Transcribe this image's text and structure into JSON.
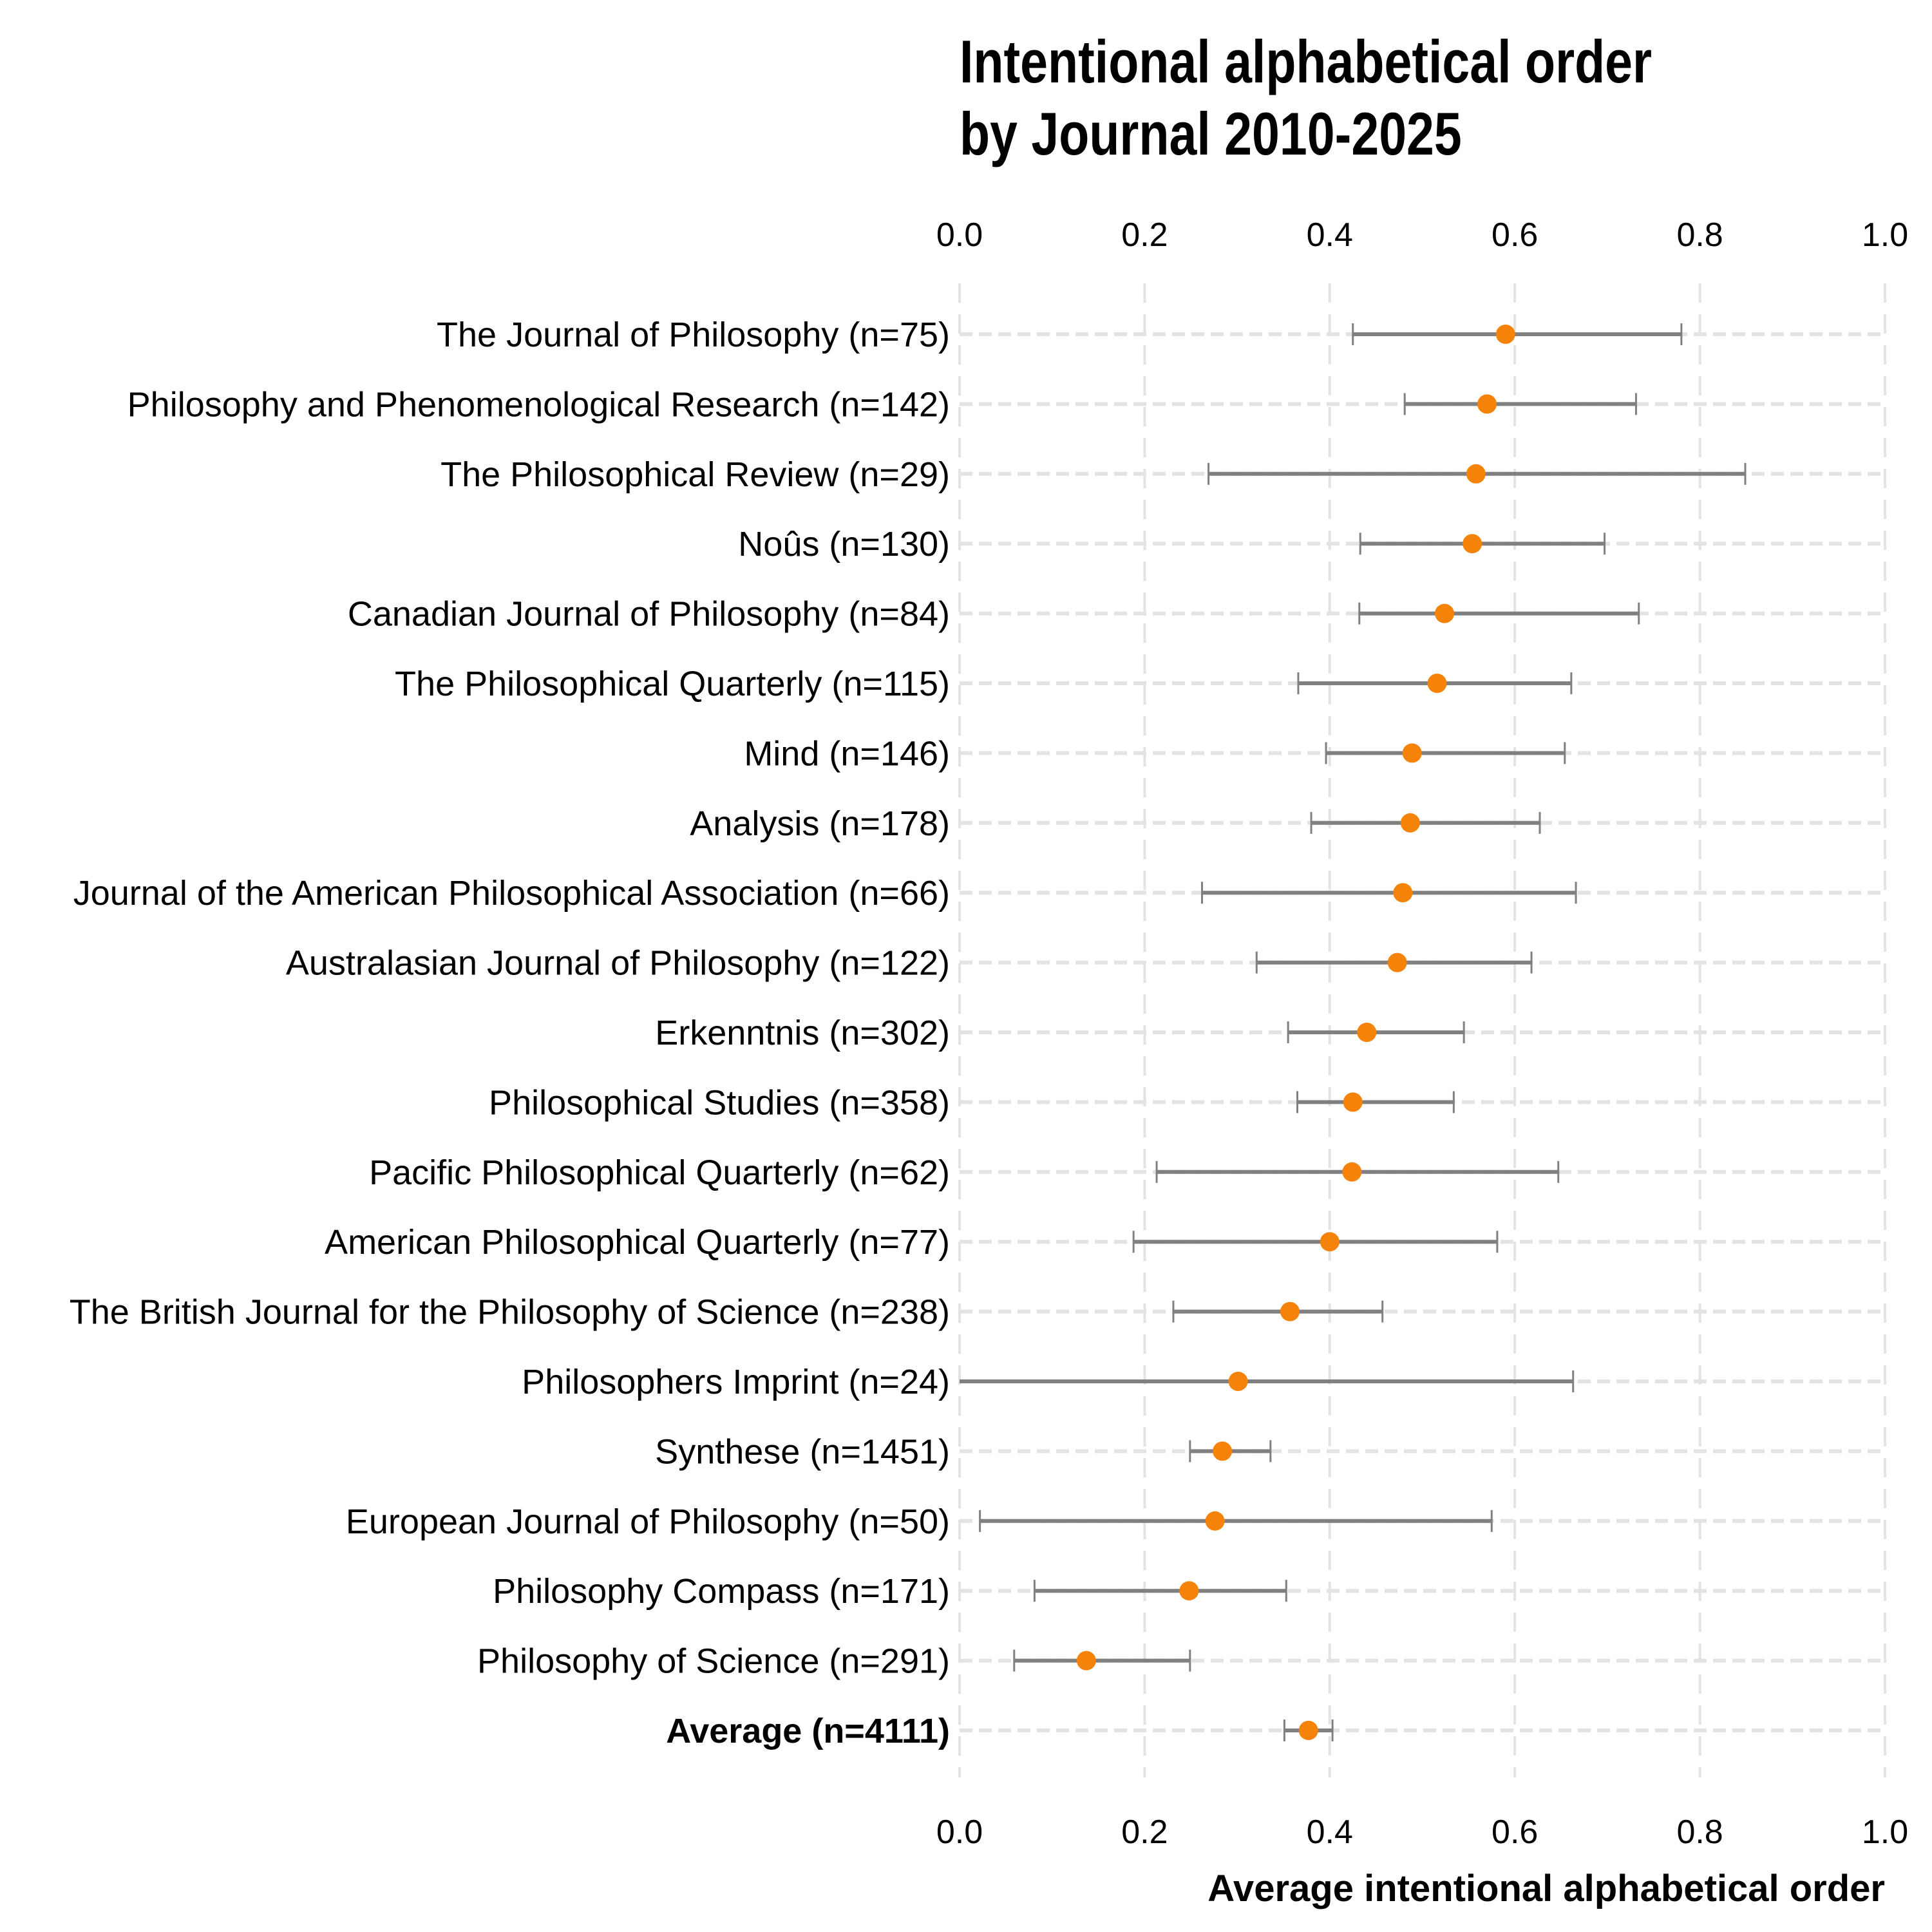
{
  "chart_data": {
    "type": "scatter",
    "subtype": "dot-and-errorbar",
    "title": "Intentional alphabetical order\nby Journal 2010-2025",
    "title_lines": [
      "Intentional alphabetical order",
      "by Journal 2010-2025"
    ],
    "xlabel": "Average intentional alphabetical order",
    "ylabel": "",
    "xlim": [
      0.0,
      1.0
    ],
    "xticks": [
      "0.0",
      "0.2",
      "0.4",
      "0.6",
      "0.8",
      "1.0"
    ],
    "xtick_values": [
      0.0,
      0.2,
      0.4,
      0.6,
      0.8,
      1.0
    ],
    "x_axis_positions": [
      "top",
      "bottom"
    ],
    "grid": true,
    "colors": {
      "point": "#f5830a",
      "errorbar": "#808080",
      "grid": "#e3e3e3"
    },
    "categories": [
      "The Journal of Philosophy (n=75)",
      "Philosophy and Phenomenological Research (n=142)",
      "The Philosophical Review (n=29)",
      "Noûs (n=130)",
      "Canadian Journal of Philosophy (n=84)",
      "The Philosophical Quarterly (n=115)",
      "Mind (n=146)",
      "Analysis (n=178)",
      "Journal of the American Philosophical Association (n=66)",
      "Australasian Journal of Philosophy (n=122)",
      "Erkenntnis (n=302)",
      "Philosophical Studies (n=358)",
      "Pacific Philosophical Quarterly (n=62)",
      "American Philosophical Quarterly (n=77)",
      "The British Journal for the Philosophy of Science (n=238)",
      "Philosophers Imprint (n=24)",
      "Synthese (n=1451)",
      "European Journal of Philosophy (n=50)",
      "Philosophy Compass (n=171)",
      "Philosophy of Science (n=291)",
      "Average (n=4111)"
    ],
    "bold_categories": [
      "Average (n=4111)"
    ],
    "series": [
      {
        "name": "Average intentional alphabetical order",
        "values": [
          0.59,
          0.57,
          0.558,
          0.554,
          0.524,
          0.516,
          0.489,
          0.487,
          0.479,
          0.473,
          0.44,
          0.425,
          0.424,
          0.4,
          0.357,
          0.301,
          0.284,
          0.276,
          0.248,
          0.137,
          0.377
        ],
        "lower": [
          0.425,
          0.481,
          0.269,
          0.433,
          0.432,
          0.366,
          0.396,
          0.38,
          0.262,
          0.321,
          0.355,
          0.365,
          0.213,
          0.188,
          0.231,
          0.0,
          0.249,
          0.022,
          0.081,
          0.059,
          0.351
        ],
        "upper": [
          0.78,
          0.731,
          0.849,
          0.697,
          0.734,
          0.661,
          0.654,
          0.627,
          0.666,
          0.618,
          0.545,
          0.534,
          0.647,
          0.581,
          0.457,
          0.663,
          0.336,
          0.575,
          0.353,
          0.249,
          0.403
        ]
      }
    ]
  }
}
